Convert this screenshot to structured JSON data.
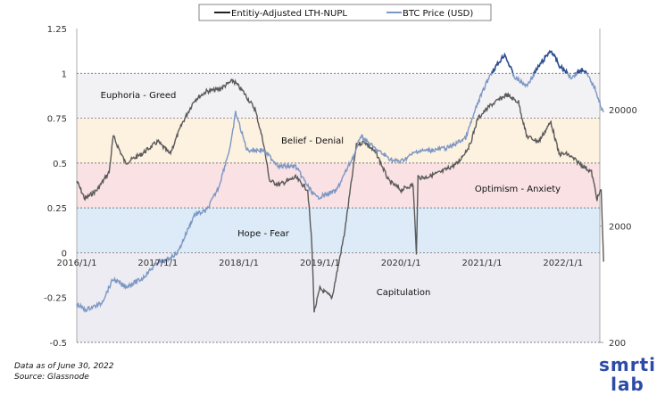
{
  "chart_data": {
    "type": "line",
    "legend": {
      "placement": "top",
      "entries": [
        "Entitiy-Adjusted LTH-NUPL",
        "BTC Price (USD)"
      ]
    },
    "x_ticks": [
      "2016/1/1",
      "2017/1/1",
      "2018/1/1",
      "2019/1/1",
      "2020/1/1",
      "2021/1/1",
      "2022/1/1"
    ],
    "y_left": {
      "ticks": [
        "1.25",
        "1",
        "0.75",
        "0.5",
        "0.25",
        "0",
        "-0.25",
        "-0.5"
      ],
      "range": [
        -0.5,
        1.25
      ]
    },
    "y_right": {
      "scale": "log",
      "ticks": [
        "20000",
        "2000",
        "200"
      ],
      "range": [
        200,
        200000
      ]
    },
    "zones": [
      {
        "label": "Euphoria - Greed",
        "from": 0.75,
        "to": 1,
        "color": "#f2f2f4"
      },
      {
        "label": "Belief - Denial",
        "from": 0.5,
        "to": 0.75,
        "color": "#fdf1e0"
      },
      {
        "label": "Optimism - Anxiety",
        "from": 0.25,
        "to": 0.5,
        "color": "#f9e1e4"
      },
      {
        "label": "Hope - Fear",
        "from": 0,
        "to": 0.25,
        "color": "#dcebf7"
      },
      {
        "label": "Capitulation",
        "from": -0.5,
        "to": 0,
        "color": "#ececf2"
      }
    ],
    "series": [
      {
        "name": "Entitiy-Adjusted LTH-NUPL",
        "axis": "left",
        "color": "#5a5a5a",
        "x": [
          2016.0,
          2016.1,
          2016.25,
          2016.4,
          2016.45,
          2016.6,
          2016.8,
          2017.0,
          2017.15,
          2017.3,
          2017.45,
          2017.6,
          2017.75,
          2017.93,
          2018.05,
          2018.2,
          2018.3,
          2018.38,
          2018.5,
          2018.7,
          2018.85,
          2018.9,
          2018.93,
          2019.0,
          2019.15,
          2019.3,
          2019.45,
          2019.55,
          2019.7,
          2019.85,
          2020.0,
          2020.15,
          2020.19,
          2020.21,
          2020.3,
          2020.5,
          2020.7,
          2020.85,
          2020.95,
          2021.1,
          2021.3,
          2021.45,
          2021.55,
          2021.7,
          2021.85,
          2021.95,
          2022.05,
          2022.2,
          2022.35,
          2022.42,
          2022.47,
          2022.5
        ],
        "y": [
          0.4,
          0.3,
          0.35,
          0.45,
          0.65,
          0.5,
          0.55,
          0.62,
          0.55,
          0.72,
          0.85,
          0.9,
          0.91,
          0.96,
          0.9,
          0.8,
          0.62,
          0.4,
          0.38,
          0.42,
          0.35,
          0.05,
          -0.33,
          -0.2,
          -0.25,
          0.1,
          0.6,
          0.62,
          0.55,
          0.4,
          0.35,
          0.38,
          0.0,
          0.42,
          0.42,
          0.45,
          0.5,
          0.6,
          0.75,
          0.82,
          0.88,
          0.84,
          0.65,
          0.62,
          0.73,
          0.55,
          0.55,
          0.5,
          0.45,
          0.3,
          0.35,
          -0.05
        ]
      },
      {
        "name": "BTC Price (USD)",
        "axis": "right",
        "color": "#7d97c4",
        "color_high": "#2f4f8f",
        "x": [
          2016.0,
          2016.1,
          2016.3,
          2016.45,
          2016.6,
          2016.8,
          2017.0,
          2017.1,
          2017.25,
          2017.45,
          2017.6,
          2017.75,
          2017.9,
          2017.96,
          2018.1,
          2018.3,
          2018.5,
          2018.7,
          2018.87,
          2018.96,
          2019.2,
          2019.45,
          2019.5,
          2019.7,
          2019.9,
          2020.0,
          2020.2,
          2020.4,
          2020.6,
          2020.8,
          2020.95,
          2021.1,
          2021.28,
          2021.4,
          2021.55,
          2021.7,
          2021.85,
          2021.95,
          2022.1,
          2022.25,
          2022.4,
          2022.47,
          2022.5
        ],
        "y": [
          430,
          380,
          430,
          700,
          600,
          700,
          980,
          1000,
          1200,
          2500,
          2700,
          4300,
          10000,
          19000,
          9000,
          9000,
          6500,
          6500,
          4200,
          3500,
          4000,
          9000,
          12000,
          9000,
          7300,
          7200,
          8800,
          9000,
          9500,
          11500,
          23000,
          40000,
          60000,
          38000,
          32000,
          47000,
          65000,
          48000,
          38000,
          45000,
          30000,
          21000,
          19000
        ]
      }
    ]
  },
  "footnote": {
    "line1": "Data as of June 30, 2022",
    "line2": "Source: Glassnode"
  },
  "logo": {
    "text": "smrti lab"
  }
}
